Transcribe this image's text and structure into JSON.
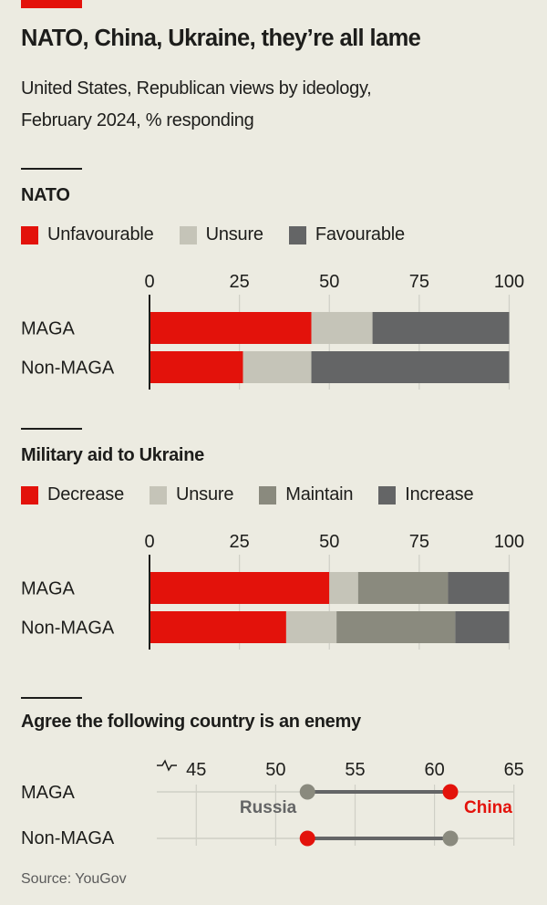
{
  "header": {
    "title": "NATO, China, Ukraine, they’re all lame",
    "subtitle_line1": "United States, Republican views by ideology,",
    "subtitle_line2": "February 2024, % responding"
  },
  "colors": {
    "red": "#e3120b",
    "unsure": "#c5c4b8",
    "maintain": "#8a8a7e",
    "dark": "#646566",
    "russia_dot": "#8a8a7e",
    "line": "#646566",
    "grid": "#cfcfc6",
    "background": "#ecebe1"
  },
  "chart_data": [
    {
      "type": "bar",
      "stacked": true,
      "orientation": "horizontal",
      "title": "NATO",
      "categories": [
        "MAGA",
        "Non-MAGA"
      ],
      "series": [
        {
          "name": "Unfavourable",
          "color": "#e3120b",
          "values": [
            45,
            26
          ]
        },
        {
          "name": "Unsure",
          "color": "#c5c4b8",
          "values": [
            17,
            19
          ]
        },
        {
          "name": "Favourable",
          "color": "#646566",
          "values": [
            38,
            55
          ]
        }
      ],
      "xlim": [
        0,
        100
      ],
      "xticks": [
        "0",
        "25",
        "50",
        "75",
        "100"
      ],
      "xtick_values": [
        0,
        25,
        50,
        75,
        100
      ],
      "grid": true,
      "legend_position": "top-left"
    },
    {
      "type": "bar",
      "stacked": true,
      "orientation": "horizontal",
      "title": "Military aid to Ukraine",
      "categories": [
        "MAGA",
        "Non-MAGA"
      ],
      "series": [
        {
          "name": "Decrease",
          "color": "#e3120b",
          "values": [
            50,
            38
          ]
        },
        {
          "name": "Unsure",
          "color": "#c5c4b8",
          "values": [
            8,
            14
          ]
        },
        {
          "name": "Maintain",
          "color": "#8a8a7e",
          "values": [
            25,
            33
          ]
        },
        {
          "name": "Increase",
          "color": "#646566",
          "values": [
            17,
            15
          ]
        }
      ],
      "xlim": [
        0,
        100
      ],
      "xticks": [
        "0",
        "25",
        "50",
        "75",
        "100"
      ],
      "xtick_values": [
        0,
        25,
        50,
        75,
        100
      ],
      "grid": true,
      "legend_position": "top-left"
    },
    {
      "type": "scatter",
      "subtype": "dumbbell",
      "title": "Agree the following country is an enemy",
      "categories": [
        "MAGA",
        "Non-MAGA"
      ],
      "series": [
        {
          "name": "Russia",
          "color": "#8a8a7e",
          "label_color": "#646566",
          "values": [
            52,
            61
          ]
        },
        {
          "name": "China",
          "color": "#e3120b",
          "label_color": "#e3120b",
          "values": [
            61,
            52
          ]
        }
      ],
      "xlim": [
        45,
        65
      ],
      "axis_break": true,
      "xticks": [
        "45",
        "50",
        "55",
        "60",
        "65"
      ],
      "xtick_values": [
        45,
        50,
        55,
        60,
        65
      ],
      "grid": true,
      "annotations": [
        "Russia",
        "China"
      ]
    }
  ],
  "source": "Source: YouGov"
}
